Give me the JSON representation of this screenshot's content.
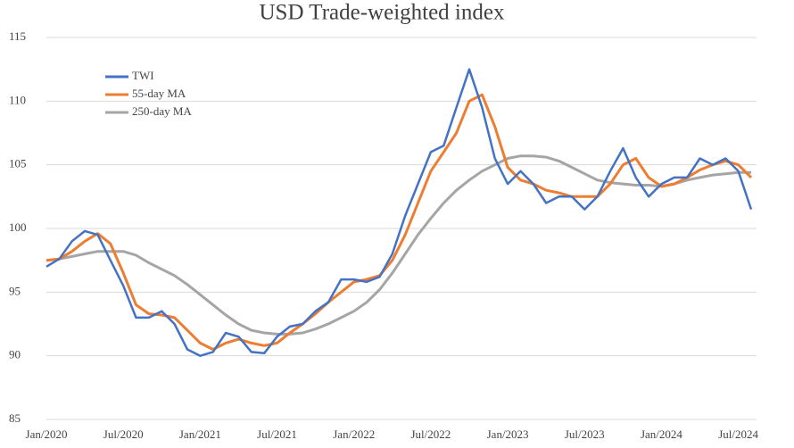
{
  "chart_data": {
    "type": "line",
    "title": "USD Trade-weighted index",
    "categories": [
      "Jan/2020",
      null,
      null,
      null,
      null,
      null,
      "Jul/2020",
      null,
      null,
      null,
      null,
      null,
      "Jan/2021",
      null,
      null,
      null,
      null,
      null,
      "Jul/2021",
      null,
      null,
      null,
      null,
      null,
      "Jan/2022",
      null,
      null,
      null,
      null,
      null,
      "Jul/2022",
      null,
      null,
      null,
      null,
      null,
      "Jan/2023",
      null,
      null,
      null,
      null,
      null,
      "Jul/2023",
      null,
      null,
      null,
      null,
      null,
      "Jan/2024",
      null,
      null,
      null,
      null,
      null,
      "Jul/2024",
      null
    ],
    "series": [
      {
        "name": "TWI",
        "color": "#4472c4",
        "values": [
          97.0,
          97.6,
          99.0,
          99.8,
          99.5,
          97.5,
          95.5,
          93.0,
          93.0,
          93.5,
          92.5,
          90.5,
          90.0,
          90.3,
          91.8,
          91.5,
          90.3,
          90.2,
          91.5,
          92.3,
          92.5,
          93.5,
          94.2,
          96.0,
          96.0,
          95.8,
          96.2,
          98.0,
          101.0,
          103.5,
          106.0,
          106.5,
          109.5,
          112.5,
          109.5,
          105.5,
          103.5,
          104.5,
          103.5,
          102.0,
          102.5,
          102.5,
          101.5,
          102.5,
          104.5,
          106.3,
          104.0,
          102.5,
          103.5,
          104.0,
          104.0,
          105.5,
          105.0,
          105.5,
          104.5,
          101.5
        ]
      },
      {
        "name": "55-day MA",
        "color": "#ed7d31",
        "values": [
          97.5,
          97.6,
          98.2,
          99.0,
          99.6,
          98.8,
          96.5,
          94.0,
          93.3,
          93.2,
          93.0,
          92.0,
          91.0,
          90.5,
          91.0,
          91.3,
          91.0,
          90.8,
          91.0,
          91.8,
          92.5,
          93.3,
          94.2,
          95.0,
          95.8,
          96.0,
          96.3,
          97.5,
          99.5,
          102.0,
          104.5,
          106.0,
          107.5,
          110.0,
          110.5,
          108.0,
          104.8,
          103.8,
          103.5,
          103.0,
          102.8,
          102.5,
          102.5,
          102.5,
          103.5,
          105.0,
          105.5,
          104.0,
          103.3,
          103.5,
          104.0,
          104.6,
          105.0,
          105.3,
          105.0,
          104.0
        ]
      },
      {
        "name": "250-day MA",
        "color": "#a5a5a5",
        "values": [
          97.5,
          97.6,
          97.8,
          98.0,
          98.2,
          98.2,
          98.2,
          97.9,
          97.3,
          96.8,
          96.3,
          95.6,
          94.8,
          94.0,
          93.2,
          92.5,
          92.0,
          91.8,
          91.7,
          91.7,
          91.8,
          92.1,
          92.5,
          93.0,
          93.5,
          94.2,
          95.2,
          96.5,
          98.0,
          99.5,
          100.8,
          102.0,
          103.0,
          103.8,
          104.5,
          105.0,
          105.5,
          105.7,
          105.7,
          105.6,
          105.3,
          104.8,
          104.3,
          103.8,
          103.6,
          103.5,
          103.4,
          103.4,
          103.3,
          103.5,
          103.8,
          104.0,
          104.2,
          104.3,
          104.4,
          104.4
        ]
      }
    ],
    "ylim": [
      85,
      115
    ],
    "yticks": [
      85,
      90,
      95,
      100,
      105,
      110,
      115
    ],
    "grid": true,
    "legend": "upper-left"
  }
}
